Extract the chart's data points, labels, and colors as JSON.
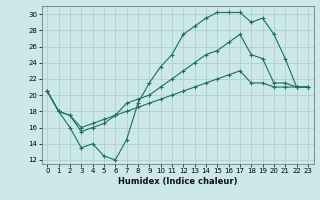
{
  "xlabel": "Humidex (Indice chaleur)",
  "bg_color": "#cce8e8",
  "line_color": "#1a6e62",
  "grid_color": "#aacccc",
  "xlim": [
    -0.5,
    23.5
  ],
  "ylim": [
    11.5,
    31.0
  ],
  "yticks": [
    12,
    14,
    16,
    18,
    20,
    22,
    24,
    26,
    28,
    30
  ],
  "xticks": [
    0,
    1,
    2,
    3,
    4,
    5,
    6,
    7,
    8,
    9,
    10,
    11,
    12,
    13,
    14,
    15,
    16,
    17,
    18,
    19,
    20,
    21,
    22,
    23
  ],
  "curve_max": [
    20.5,
    18.0,
    16.0,
    13.5,
    14.0,
    12.5,
    12.0,
    14.5,
    19.0,
    21.5,
    23.5,
    25.0,
    27.5,
    28.5,
    29.5,
    30.2,
    30.2,
    30.2,
    29.0,
    29.5,
    27.5,
    24.5,
    21.0,
    21.0
  ],
  "curve_mid": [
    20.5,
    18.0,
    17.5,
    15.5,
    16.0,
    16.5,
    17.5,
    19.0,
    19.5,
    20.0,
    21.0,
    22.0,
    23.0,
    24.0,
    25.0,
    25.5,
    26.5,
    27.5,
    25.0,
    24.5,
    21.5,
    21.5,
    21.0,
    21.0
  ],
  "curve_min": [
    20.5,
    18.0,
    17.5,
    16.0,
    16.5,
    17.0,
    17.5,
    18.0,
    18.5,
    19.0,
    19.5,
    20.0,
    20.5,
    21.0,
    21.5,
    22.0,
    22.5,
    23.0,
    21.5,
    21.5,
    21.0,
    21.0,
    21.0,
    21.0
  ]
}
